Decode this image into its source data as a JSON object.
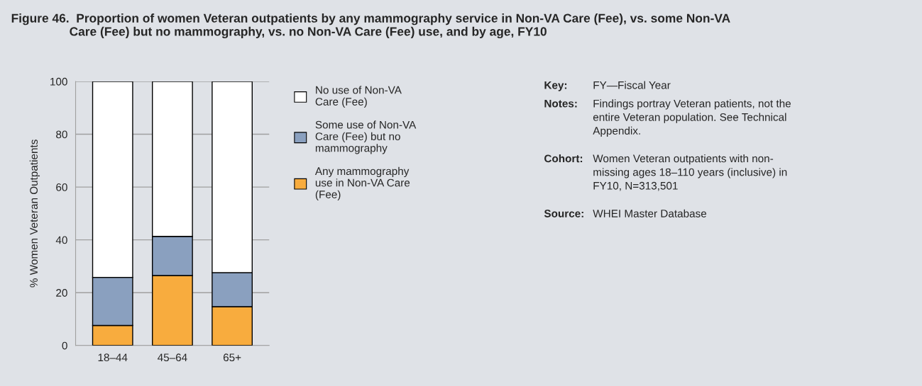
{
  "chart_data": {
    "type": "bar",
    "stacked": true,
    "title": "Figure 46.  Proportion of women Veteran outpatients by any mammography service in Non-VA Care (Fee), vs. some Non-VA\n                 Care (Fee) but no mammography, vs. no Non-VA Care (Fee) use, and by age, FY10",
    "ylabel": "% Women Veteran Outpatients",
    "categories": [
      "18–44",
      "45–64",
      "65+"
    ],
    "series": [
      {
        "name": "Any mammography\nuse in Non-VA Care\n(Fee)",
        "color": "#f8ac3e",
        "values": [
          7.6,
          26.5,
          14.7
        ]
      },
      {
        "name": "Some use of Non-VA\nCare (Fee) but no\nmammography",
        "color": "#8aa0bf",
        "values": [
          18.2,
          14.8,
          12.9
        ]
      },
      {
        "name": "No use of Non-VA\nCare (Fee)",
        "color": "#ffffff",
        "values": [
          74.2,
          58.7,
          72.4
        ]
      }
    ],
    "ylim": [
      0,
      100
    ],
    "yticks": [
      0,
      20,
      40,
      60,
      80,
      100
    ],
    "grid": "y",
    "legend": "right",
    "annotations": [
      "Key:",
      "FY—Fiscal Year",
      "Notes:",
      "Findings portray Veteran patients, not the\nentire Veteran population. See Technical\nAppendix.",
      "Cohort:",
      "Women Veteran outpatients with non-\nmissing ages 18–110 years (inclusive) in\nFY10, N=313,501",
      "Source:",
      "WHEI Master Database"
    ]
  }
}
